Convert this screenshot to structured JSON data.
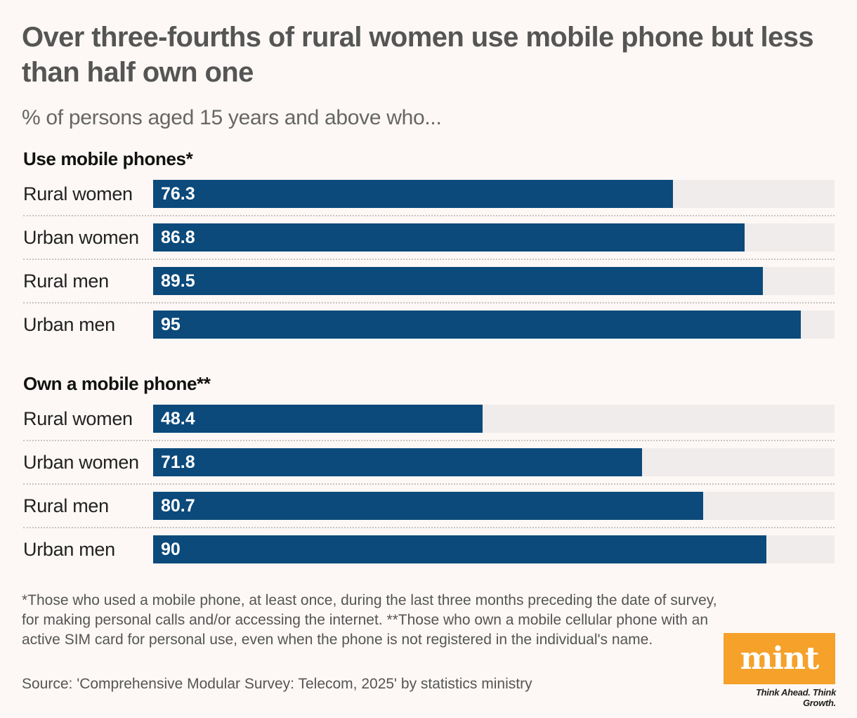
{
  "title": "Over three-fourths of rural women use mobile phone but less than half own one",
  "subtitle": "% of persons aged 15 years and above who...",
  "chart_data": [
    {
      "type": "bar",
      "orientation": "horizontal",
      "title": "Use mobile phones*",
      "categories": [
        "Rural women",
        "Urban women",
        "Rural men",
        "Urban men"
      ],
      "values": [
        76.3,
        86.8,
        89.5,
        95
      ],
      "value_labels": [
        "76.3",
        "86.8",
        "89.5",
        "95"
      ],
      "xlim": [
        0,
        100
      ],
      "grid": false,
      "bar_color": "#0b4a7b",
      "track_color": "#f0eceb"
    },
    {
      "type": "bar",
      "orientation": "horizontal",
      "title": "Own a mobile phone**",
      "categories": [
        "Rural women",
        "Urban women",
        "Rural men",
        "Urban men"
      ],
      "values": [
        48.4,
        71.8,
        80.7,
        90
      ],
      "value_labels": [
        "48.4",
        "71.8",
        "80.7",
        "90"
      ],
      "xlim": [
        0,
        100
      ],
      "grid": false,
      "bar_color": "#0b4a7b",
      "track_color": "#f0eceb"
    }
  ],
  "footnote": "*Those who used a mobile phone, at least once, during the last three months preceding the date of survey, for making personal calls and/or accessing the internet. **Those who own a mobile cellular phone with an active SIM card for personal use, even when the phone is not registered in the individual's name.",
  "source": "Source: 'Comprehensive Modular Survey: Telecom, 2025' by statistics ministry",
  "logo": {
    "text": "mint",
    "tagline": "Think Ahead. Think Growth.",
    "color": "#f5a12a"
  }
}
